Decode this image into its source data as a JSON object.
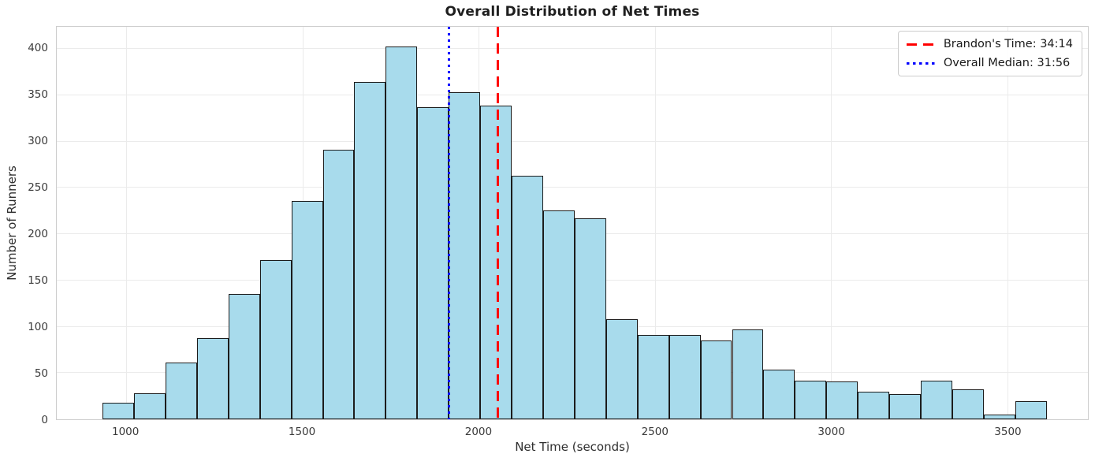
{
  "chart_data": {
    "type": "bar",
    "subtype": "histogram",
    "title": "Overall Distribution of Net Times",
    "xlabel": "Net Time (seconds)",
    "ylabel": "Number of Runners",
    "bin_start": 933,
    "bin_width": 89.3,
    "counts": [
      18,
      28,
      61,
      88,
      135,
      172,
      236,
      291,
      364,
      403,
      337,
      353,
      339,
      263,
      226,
      217,
      108,
      91,
      91,
      85,
      97,
      54,
      42,
      41,
      30,
      27,
      42,
      32,
      5,
      20
    ],
    "xticks": [
      1000,
      1500,
      2000,
      2500,
      3000,
      3500
    ],
    "yticks": [
      0,
      50,
      100,
      150,
      200,
      250,
      300,
      350,
      400
    ],
    "xlim": [
      803,
      3729
    ],
    "ylim": [
      0,
      424
    ],
    "grid": "both",
    "bar_fill": "#a8dbec",
    "bar_edge": "#1c1c1c",
    "vlines": [
      {
        "x": 2054,
        "label": "Brandon's Time: 34:14",
        "color": "#ff0000",
        "style": "dashed"
      },
      {
        "x": 1916,
        "label": "Overall Median: 31:56",
        "color": "#0000ff",
        "style": "dotted"
      }
    ],
    "legend_position": "upper right"
  }
}
